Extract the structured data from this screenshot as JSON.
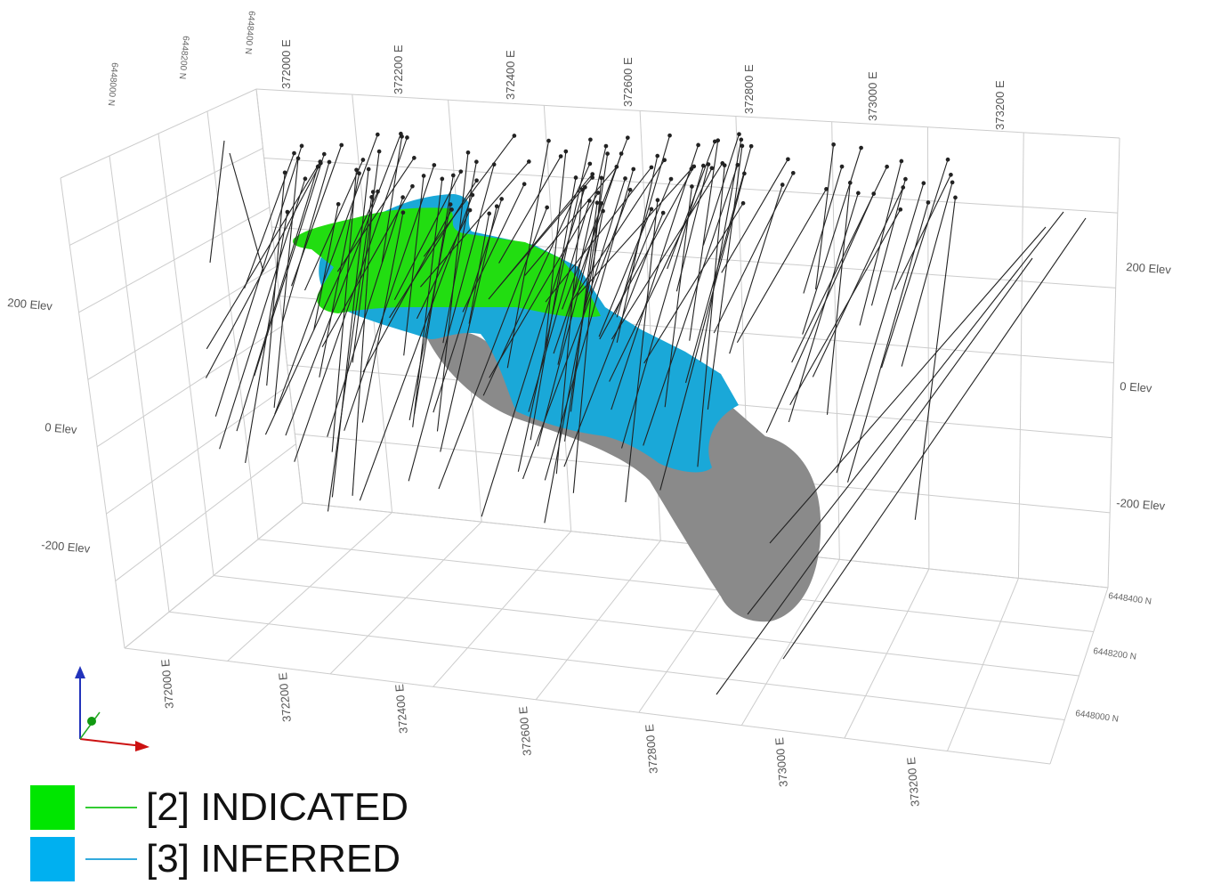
{
  "axes": {
    "east_top": [
      "372000 E",
      "372200 E",
      "372400 E",
      "372600 E",
      "372800 E",
      "373000 E",
      "373200 E"
    ],
    "east_bottom": [
      "372000 E",
      "372200 E",
      "372400 E",
      "372600 E",
      "372800 E",
      "373000 E",
      "373200 E"
    ],
    "north_top": [
      "6448000 N",
      "6448200 N",
      "6448400 N"
    ],
    "north_right": [
      "6448400 N",
      "6448200 N",
      "6448000 N"
    ],
    "elev_left": [
      "200 Elev",
      "0 Elev",
      "-200 Elev"
    ],
    "elev_right": [
      "200 Elev",
      "0 Elev",
      "-200 Elev"
    ]
  },
  "legend": {
    "items": [
      {
        "label": "[2] INDICATED",
        "swatch": "#00e600",
        "line": "#33cc33"
      },
      {
        "label": "[3] INFERRED",
        "swatch": "#00b0f0",
        "line": "#33aadd"
      }
    ]
  },
  "colors": {
    "indicated": "#22dd11",
    "inferred": "#1aa8d8",
    "unclassified": "#8a8a8a",
    "grid": "#cccccc",
    "drillhole": "#222222"
  },
  "orientation_icon": "xyz-axis-triad-icon"
}
